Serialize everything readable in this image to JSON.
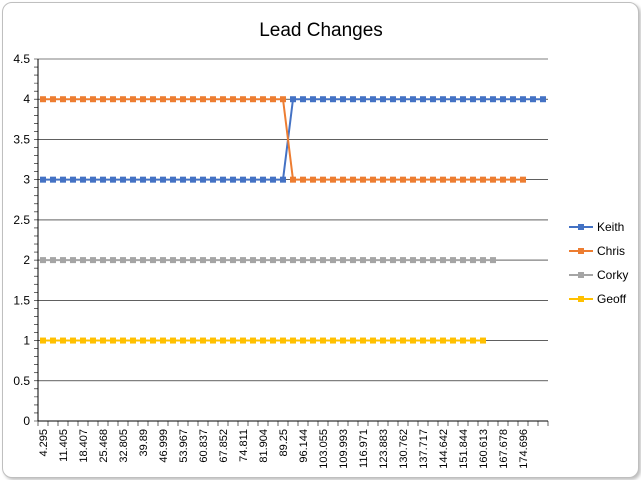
{
  "chart_data": {
    "type": "line",
    "title": "Lead Changes",
    "xlabel": "",
    "ylabel": "",
    "ylim": [
      0,
      4.5
    ],
    "yticks": [
      "0",
      "0.5",
      "1",
      "1.5",
      "2",
      "2.5",
      "3",
      "3.5",
      "4",
      "4.5"
    ],
    "ytick_values": [
      0,
      0.5,
      1,
      1.5,
      2,
      2.5,
      3,
      3.5,
      4,
      4.5
    ],
    "xtick_labels": [
      "4.295",
      "11.405",
      "18.407",
      "25.468",
      "32.805",
      "39.89",
      "46.999",
      "53.967",
      "60.837",
      "67.852",
      "74.811",
      "81.904",
      "89.25",
      "96.144",
      "103.055",
      "109.993",
      "116.971",
      "123.883",
      "130.762",
      "137.717",
      "144.642",
      "151.844",
      "160.613",
      "167.678",
      "174.696"
    ],
    "category_count": 51,
    "grid": true,
    "legend_position": "right",
    "series": [
      {
        "name": "Keith",
        "color": "#4472C4",
        "switch_index": 25,
        "before": 3,
        "after": 4,
        "point_count": 51
      },
      {
        "name": "Chris",
        "color": "#ED7D31",
        "switch_index": 25,
        "before": 4,
        "after": 3,
        "point_count": 49
      },
      {
        "name": "Corky",
        "color": "#A5A5A5",
        "switch_index": null,
        "before": 2,
        "after": 2,
        "point_count": 46
      },
      {
        "name": "Geoff",
        "color": "#FFC000",
        "switch_index": null,
        "before": 1,
        "after": 1,
        "point_count": 45
      }
    ]
  }
}
